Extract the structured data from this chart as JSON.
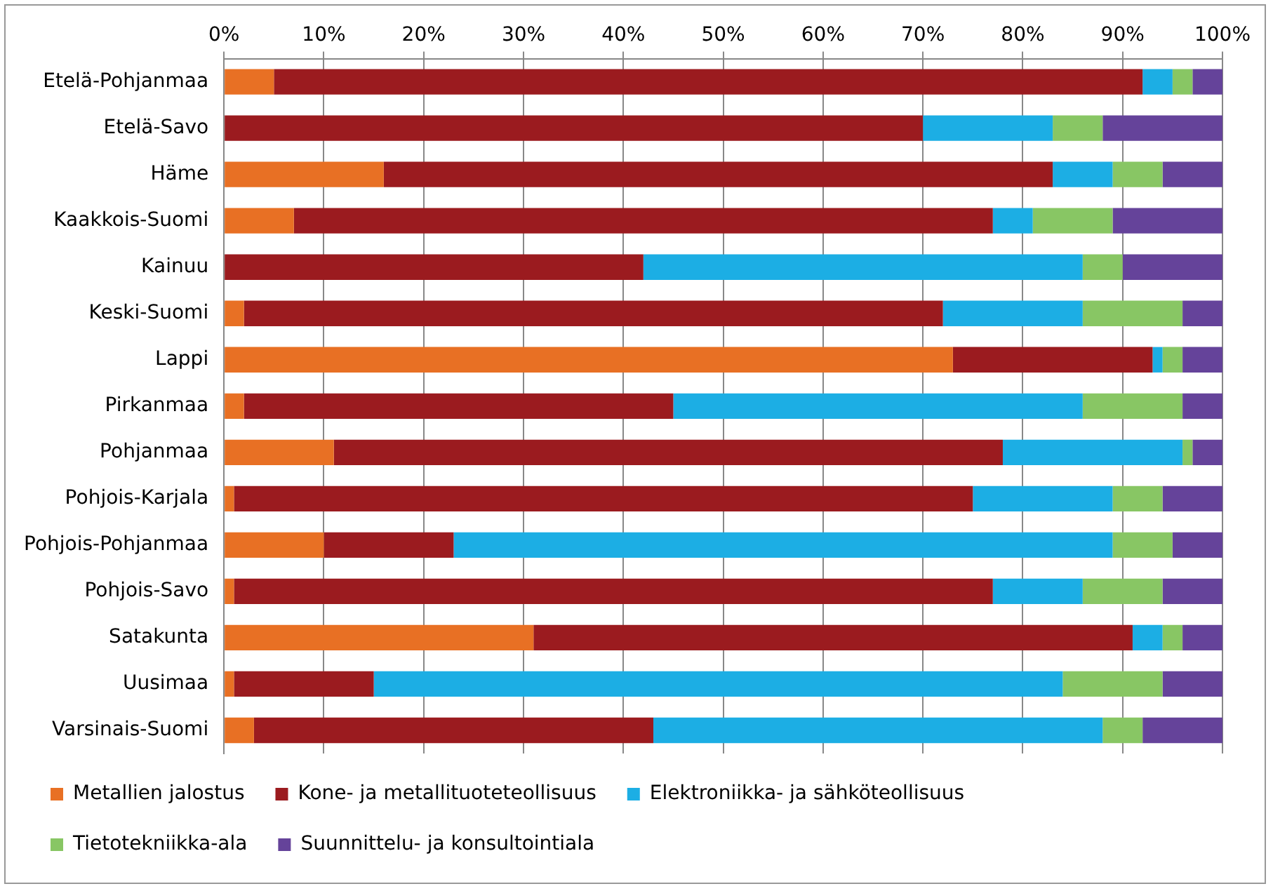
{
  "chart_data": {
    "type": "bar",
    "orientation": "horizontal",
    "stacked": true,
    "categories": [
      "Etelä-Pohjanmaa",
      "Etelä-Savo",
      "Häme",
      "Kaakkois-Suomi",
      "Kainuu",
      "Keski-Suomi",
      "Lappi",
      "Pirkanmaa",
      "Pohjanmaa",
      "Pohjois-Karjala",
      "Pohjois-Pohjanmaa",
      "Pohjois-Savo",
      "Satakunta",
      "Uusimaa",
      "Varsinais-Suomi"
    ],
    "series": [
      {
        "name": "Metallien jalostus",
        "color": "#e87024",
        "values": [
          5,
          0,
          16,
          7,
          0,
          2,
          73,
          2,
          11,
          1,
          10,
          1,
          31,
          1,
          3
        ]
      },
      {
        "name": "Kone- ja metallituoteteollisuus",
        "color": "#9b1b1f",
        "values": [
          87,
          70,
          67,
          70,
          42,
          70,
          20,
          43,
          67,
          74,
          13,
          76,
          60,
          14,
          40
        ]
      },
      {
        "name": "Elektroniikka- ja sähköteollisuus",
        "color": "#1caee4",
        "values": [
          3,
          13,
          6,
          4,
          44,
          14,
          1,
          41,
          18,
          14,
          66,
          9,
          3,
          69,
          45
        ]
      },
      {
        "name": "Tietotekniikka-ala",
        "color": "#88c664",
        "values": [
          2,
          5,
          5,
          8,
          4,
          10,
          2,
          10,
          1,
          5,
          6,
          8,
          2,
          10,
          4
        ]
      },
      {
        "name": "Suunnittelu- ja konsultointiala",
        "color": "#65439a",
        "values": [
          3,
          12,
          6,
          11,
          10,
          4,
          4,
          4,
          3,
          6,
          5,
          6,
          4,
          6,
          8
        ]
      }
    ],
    "xlim": [
      0,
      100
    ],
    "xticks": [
      {
        "value": 0,
        "label": "0%"
      },
      {
        "value": 10,
        "label": "10%"
      },
      {
        "value": 20,
        "label": "20%"
      },
      {
        "value": 30,
        "label": "30%"
      },
      {
        "value": 40,
        "label": "40%"
      },
      {
        "value": 50,
        "label": "50%"
      },
      {
        "value": 60,
        "label": "60%"
      },
      {
        "value": 70,
        "label": "70%"
      },
      {
        "value": 80,
        "label": "80%"
      },
      {
        "value": 90,
        "label": "90%"
      },
      {
        "value": 100,
        "label": "100%"
      }
    ],
    "grid": "x",
    "legend": "bottom"
  }
}
